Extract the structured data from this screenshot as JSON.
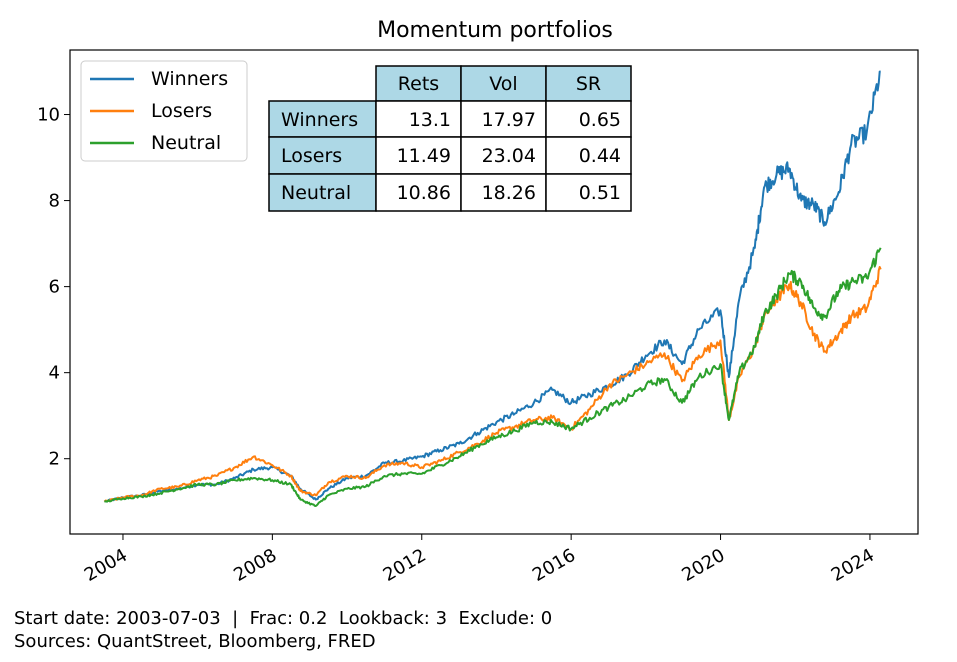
{
  "chart_data": {
    "type": "line",
    "title": "Momentum portfolios",
    "xlabel": "",
    "ylabel": "",
    "x_ticks": [
      "2004",
      "2008",
      "2012",
      "2016",
      "2020",
      "2024"
    ],
    "y_ticks": [
      "2",
      "4",
      "6",
      "8",
      "10"
    ],
    "xlim": [
      "2002-08-01",
      "2025-04-15"
    ],
    "ylim": [
      0.25,
      11.5
    ],
    "legend_position": "top-left",
    "grid": false,
    "series": [
      {
        "name": "Winners",
        "color": "#1f77b4",
        "points": [
          [
            "2003-07-03",
            1.0
          ],
          [
            "2004-01-01",
            1.1
          ],
          [
            "2004-07-01",
            1.15
          ],
          [
            "2005-01-01",
            1.25
          ],
          [
            "2005-07-01",
            1.3
          ],
          [
            "2006-01-01",
            1.4
          ],
          [
            "2006-07-01",
            1.4
          ],
          [
            "2007-01-01",
            1.55
          ],
          [
            "2007-07-01",
            1.75
          ],
          [
            "2008-01-01",
            1.8
          ],
          [
            "2008-07-01",
            1.6
          ],
          [
            "2008-10-01",
            1.3
          ],
          [
            "2009-03-01",
            1.05
          ],
          [
            "2009-07-01",
            1.3
          ],
          [
            "2010-01-01",
            1.55
          ],
          [
            "2010-07-01",
            1.6
          ],
          [
            "2011-01-01",
            1.9
          ],
          [
            "2011-07-01",
            1.95
          ],
          [
            "2012-01-01",
            2.05
          ],
          [
            "2012-07-01",
            2.2
          ],
          [
            "2013-01-01",
            2.35
          ],
          [
            "2013-07-01",
            2.6
          ],
          [
            "2014-01-01",
            2.85
          ],
          [
            "2014-07-01",
            3.05
          ],
          [
            "2015-01-01",
            3.3
          ],
          [
            "2015-07-01",
            3.6
          ],
          [
            "2016-01-01",
            3.3
          ],
          [
            "2016-07-01",
            3.5
          ],
          [
            "2017-01-01",
            3.7
          ],
          [
            "2017-07-01",
            3.95
          ],
          [
            "2018-01-01",
            4.4
          ],
          [
            "2018-07-01",
            4.75
          ],
          [
            "2018-12-20",
            4.2
          ],
          [
            "2019-06-01",
            5.0
          ],
          [
            "2019-12-31",
            5.45
          ],
          [
            "2020-03-23",
            3.9
          ],
          [
            "2020-07-01",
            5.7
          ],
          [
            "2020-12-01",
            6.9
          ],
          [
            "2021-03-01",
            8.3
          ],
          [
            "2021-07-01",
            8.6
          ],
          [
            "2021-11-01",
            8.75
          ],
          [
            "2022-03-01",
            8.0
          ],
          [
            "2022-07-01",
            7.9
          ],
          [
            "2022-10-15",
            7.5
          ],
          [
            "2023-03-01",
            8.2
          ],
          [
            "2023-07-01",
            9.3
          ],
          [
            "2023-12-01",
            9.6
          ],
          [
            "2024-04-15",
            11.0
          ]
        ]
      },
      {
        "name": "Losers",
        "color": "#ff7f0e",
        "points": [
          [
            "2003-07-03",
            1.0
          ],
          [
            "2004-01-01",
            1.1
          ],
          [
            "2004-07-01",
            1.15
          ],
          [
            "2005-01-01",
            1.3
          ],
          [
            "2005-07-01",
            1.35
          ],
          [
            "2006-01-01",
            1.5
          ],
          [
            "2006-07-01",
            1.6
          ],
          [
            "2007-01-01",
            1.8
          ],
          [
            "2007-07-01",
            2.05
          ],
          [
            "2008-01-01",
            1.85
          ],
          [
            "2008-07-01",
            1.6
          ],
          [
            "2008-10-01",
            1.25
          ],
          [
            "2009-03-01",
            1.15
          ],
          [
            "2009-07-01",
            1.45
          ],
          [
            "2010-01-01",
            1.6
          ],
          [
            "2010-07-01",
            1.55
          ],
          [
            "2011-01-01",
            1.85
          ],
          [
            "2011-07-01",
            1.9
          ],
          [
            "2012-01-01",
            1.8
          ],
          [
            "2012-07-01",
            1.95
          ],
          [
            "2013-01-01",
            2.15
          ],
          [
            "2013-07-01",
            2.35
          ],
          [
            "2014-01-01",
            2.6
          ],
          [
            "2014-07-01",
            2.75
          ],
          [
            "2015-01-01",
            2.9
          ],
          [
            "2015-07-01",
            2.95
          ],
          [
            "2016-01-01",
            2.7
          ],
          [
            "2016-07-01",
            3.15
          ],
          [
            "2017-01-01",
            3.7
          ],
          [
            "2017-07-01",
            3.95
          ],
          [
            "2018-01-01",
            4.2
          ],
          [
            "2018-07-01",
            4.45
          ],
          [
            "2018-12-20",
            3.8
          ],
          [
            "2019-06-01",
            4.4
          ],
          [
            "2019-12-31",
            4.75
          ],
          [
            "2020-03-23",
            2.9
          ],
          [
            "2020-07-01",
            3.9
          ],
          [
            "2020-12-01",
            4.6
          ],
          [
            "2021-03-01",
            5.3
          ],
          [
            "2021-07-01",
            5.7
          ],
          [
            "2021-11-01",
            6.05
          ],
          [
            "2022-03-01",
            5.6
          ],
          [
            "2022-07-01",
            4.9
          ],
          [
            "2022-10-15",
            4.5
          ],
          [
            "2023-03-01",
            4.9
          ],
          [
            "2023-07-01",
            5.3
          ],
          [
            "2023-12-01",
            5.5
          ],
          [
            "2024-04-15",
            6.4
          ]
        ]
      },
      {
        "name": "Neutral",
        "color": "#2ca02c",
        "points": [
          [
            "2003-07-03",
            1.0
          ],
          [
            "2004-01-01",
            1.08
          ],
          [
            "2004-07-01",
            1.12
          ],
          [
            "2005-01-01",
            1.2
          ],
          [
            "2005-07-01",
            1.3
          ],
          [
            "2006-01-01",
            1.4
          ],
          [
            "2006-07-01",
            1.4
          ],
          [
            "2007-01-01",
            1.5
          ],
          [
            "2007-07-01",
            1.55
          ],
          [
            "2008-01-01",
            1.5
          ],
          [
            "2008-07-01",
            1.4
          ],
          [
            "2008-10-01",
            1.05
          ],
          [
            "2009-03-01",
            0.9
          ],
          [
            "2009-07-01",
            1.15
          ],
          [
            "2010-01-01",
            1.3
          ],
          [
            "2010-07-01",
            1.35
          ],
          [
            "2011-01-01",
            1.6
          ],
          [
            "2011-07-01",
            1.65
          ],
          [
            "2012-01-01",
            1.65
          ],
          [
            "2012-07-01",
            1.85
          ],
          [
            "2013-01-01",
            2.05
          ],
          [
            "2013-07-01",
            2.3
          ],
          [
            "2014-01-01",
            2.5
          ],
          [
            "2014-07-01",
            2.65
          ],
          [
            "2015-01-01",
            2.85
          ],
          [
            "2015-07-01",
            2.85
          ],
          [
            "2016-01-01",
            2.7
          ],
          [
            "2016-07-01",
            2.95
          ],
          [
            "2017-01-01",
            3.2
          ],
          [
            "2017-07-01",
            3.4
          ],
          [
            "2018-01-01",
            3.7
          ],
          [
            "2018-07-01",
            3.85
          ],
          [
            "2018-12-20",
            3.3
          ],
          [
            "2019-06-01",
            3.9
          ],
          [
            "2019-12-31",
            4.2
          ],
          [
            "2020-03-23",
            2.9
          ],
          [
            "2020-07-01",
            4.0
          ],
          [
            "2020-12-01",
            4.6
          ],
          [
            "2021-03-01",
            5.35
          ],
          [
            "2021-07-01",
            5.8
          ],
          [
            "2021-11-01",
            6.3
          ],
          [
            "2022-03-01",
            6.1
          ],
          [
            "2022-07-01",
            5.5
          ],
          [
            "2022-10-15",
            5.3
          ],
          [
            "2023-03-01",
            5.9
          ],
          [
            "2023-07-01",
            6.1
          ],
          [
            "2023-12-01",
            6.2
          ],
          [
            "2024-04-15",
            6.9
          ]
        ]
      }
    ],
    "table": {
      "columns": [
        "Rets",
        "Vol",
        "SR"
      ],
      "rows": [
        {
          "label": "Winners",
          "values": [
            "13.1",
            "17.97",
            "0.65"
          ]
        },
        {
          "label": "Losers",
          "values": [
            "11.49",
            "23.04",
            "0.44"
          ]
        },
        {
          "label": "Neutral",
          "values": [
            "10.86",
            "18.26",
            "0.51"
          ]
        }
      ],
      "header_fill": "#add8e6"
    }
  },
  "footer": {
    "line1": "Start date: 2003-07-03  |  Frac: 0.2  Lookback: 3  Exclude: 0",
    "line2": "Sources: QuantStreet, Bloomberg, FRED"
  }
}
